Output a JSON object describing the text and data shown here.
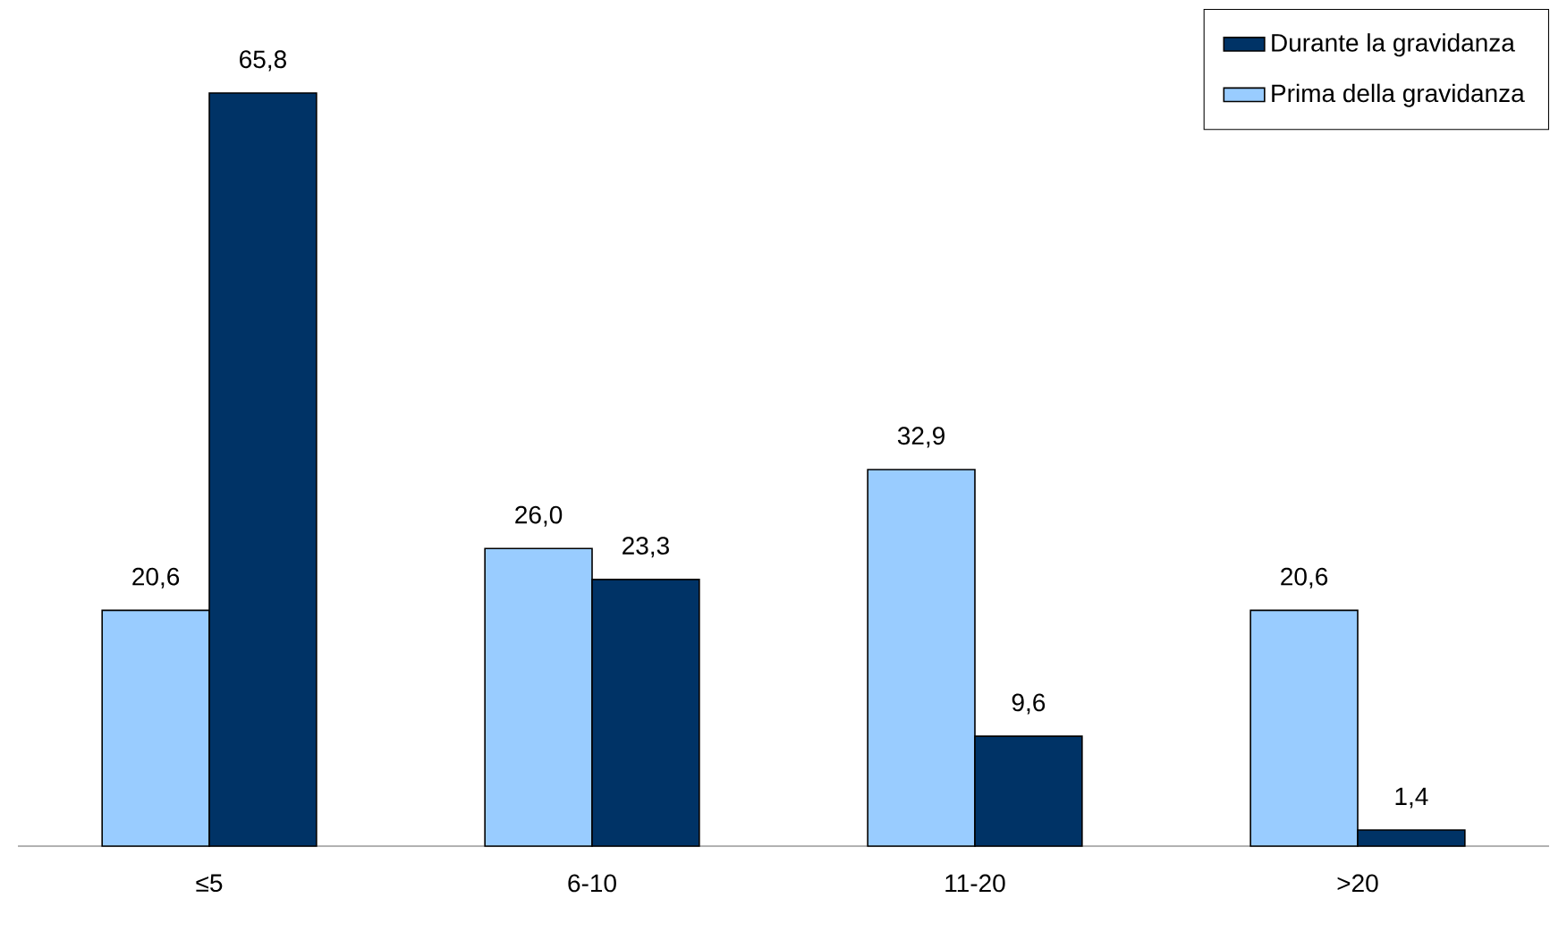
{
  "chart_data": {
    "type": "bar",
    "categories": [
      "≤5",
      "6-10",
      "11-20",
      ">20"
    ],
    "series": [
      {
        "name": "Prima della gravidanza",
        "color": "#99ccff",
        "values": [
          20.6,
          26.0,
          32.9,
          20.6
        ],
        "value_labels": [
          "20,6",
          "26,0",
          "32,9",
          "20,6"
        ]
      },
      {
        "name": "Durante la gravidanza",
        "color": "#003366",
        "values": [
          65.8,
          23.3,
          9.6,
          1.4
        ],
        "value_labels": [
          "65,8",
          "23,3",
          "9,6",
          "1,4"
        ]
      }
    ],
    "legend": "top right"
  }
}
